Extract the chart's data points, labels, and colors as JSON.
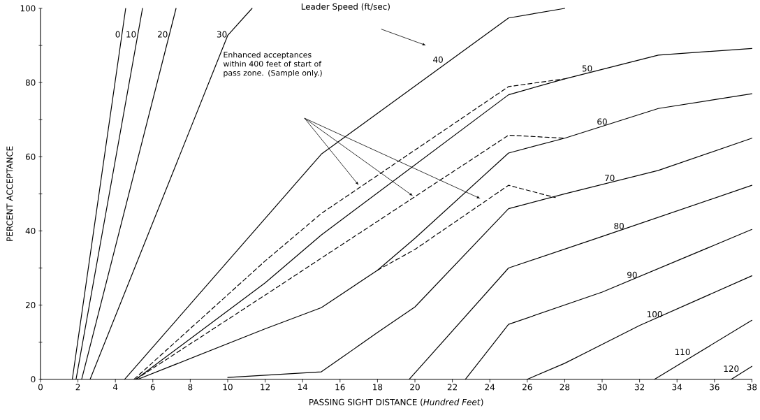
{
  "chart_data": {
    "type": "line",
    "xlabel": "PASSING SIGHT DISTANCE (*Hundred Feet*)",
    "ylabel": "PERCENT ACCEPTANCE",
    "xlim": [
      0,
      38
    ],
    "ylim": [
      0,
      100
    ],
    "xticks": [
      0,
      2,
      4,
      6,
      8,
      10,
      12,
      14,
      16,
      18,
      20,
      22,
      24,
      26,
      28,
      30,
      32,
      34,
      36,
      38
    ],
    "yticks": [
      0,
      {
        "value": 10,
        "label": null
      },
      20,
      {
        "value": 30,
        "label": null
      },
      40,
      {
        "value": 50,
        "label": null
      },
      60,
      {
        "value": 70,
        "label": null
      },
      80,
      {
        "value": 90,
        "label": null
      },
      100
    ],
    "series": [
      {
        "name": "0",
        "color": "#000000",
        "line_style": "solid",
        "x": [
          1.7,
          4.55
        ],
        "values": [
          0,
          100
        ]
      },
      {
        "name": "10",
        "color": "#000000",
        "line_style": "solid",
        "x": [
          1.9,
          5.45
        ],
        "values": [
          0,
          100
        ]
      },
      {
        "name": "20",
        "color": "#000000",
        "line_style": "solid",
        "x": [
          2.2,
          7.24
        ],
        "values": [
          0,
          100
        ]
      },
      {
        "name": "30",
        "color": "#000000",
        "line_style": "solid",
        "x": [
          2.65,
          10.0,
          11.3
        ],
        "values": [
          0,
          92.7,
          100
        ]
      },
      {
        "name": "40",
        "color": "#000000",
        "line_style": "solid",
        "x": [
          4.5,
          15,
          25,
          28
        ],
        "values": [
          0,
          60.7,
          97.4,
          100
        ]
      },
      {
        "name": "50",
        "color": "#000000",
        "line_style": "solid",
        "x": [
          5.1,
          12,
          15,
          25,
          28,
          33,
          38
        ],
        "values": [
          0,
          26,
          38.9,
          76.7,
          81,
          87.4,
          89.2
        ]
      },
      {
        "color": "#000000",
        "line_style": "dashed",
        "x": [
          5.0,
          12,
          15,
          25,
          28
        ],
        "values": [
          0,
          31.9,
          44.7,
          78.9,
          81
        ]
      },
      {
        "name": "60",
        "color": "#000000",
        "line_style": "solid",
        "x": [
          5.2,
          12,
          15,
          18,
          20,
          25,
          28,
          33,
          38
        ],
        "values": [
          0,
          13.6,
          19.3,
          29.4,
          38,
          61,
          65,
          73,
          77
        ]
      },
      {
        "color": "#000000",
        "line_style": "dashed",
        "x": [
          5.1,
          12,
          25,
          28
        ],
        "values": [
          0,
          22.7,
          65.8,
          65
        ]
      },
      {
        "color": "#000000",
        "line_style": "dashed",
        "x": [
          18,
          20,
          25,
          27.5
        ],
        "values": [
          29.4,
          35,
          52.3,
          49
        ]
      },
      {
        "name": "70",
        "color": "#000000",
        "line_style": "solid",
        "x": [
          10,
          15,
          18,
          20,
          25,
          28,
          33,
          38
        ],
        "values": [
          0.5,
          2,
          12.6,
          19.5,
          46,
          50,
          56.3,
          65
        ]
      },
      {
        "name": "80",
        "color": "#000000",
        "line_style": "solid",
        "x": [
          19.7,
          25,
          30,
          38
        ],
        "values": [
          0,
          30,
          38.5,
          52.3
        ]
      },
      {
        "name": "90",
        "color": "#000000",
        "line_style": "solid",
        "x": [
          22.7,
          25,
          30,
          38
        ],
        "values": [
          0,
          14.8,
          23.5,
          40.4
        ]
      },
      {
        "name": "100",
        "color": "#000000",
        "line_style": "solid",
        "x": [
          26,
          28,
          32,
          38
        ],
        "values": [
          0,
          4.3,
          14.5,
          27.9
        ]
      },
      {
        "name": "110",
        "color": "#000000",
        "line_style": "solid",
        "x": [
          32.8,
          38
        ],
        "values": [
          0,
          15.9
        ]
      },
      {
        "name": "120",
        "color": "#000000",
        "line_style": "solid",
        "x": [
          36.9,
          38
        ],
        "values": [
          0,
          3.5
        ]
      }
    ],
    "annotations": [
      "Leader Speed (ft/sec)",
      "Enhanced acceptances within 400 feet of start of pass zone. (Sample only.)"
    ]
  }
}
